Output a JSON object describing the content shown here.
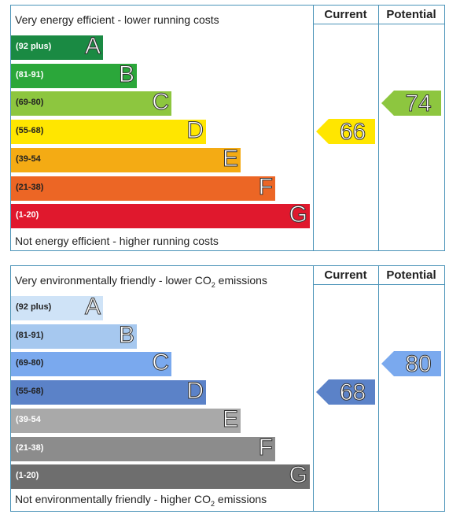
{
  "chart_data": [
    {
      "type": "bar",
      "top_text": "Very energy efficient - lower running costs",
      "bottom_text": "Not energy efficient - higher running costs",
      "columns": [
        "Current",
        "Potential"
      ],
      "bands": [
        {
          "range": "(92 plus)",
          "letter": "A",
          "color": "#1a8a43",
          "range_color": "#ffffff"
        },
        {
          "range": "(81-91)",
          "letter": "B",
          "color": "#2ba73a",
          "range_color": "#ffffff"
        },
        {
          "range": "(69-80)",
          "letter": "C",
          "color": "#8dc63f",
          "range_color": "#222222"
        },
        {
          "range": "(55-68)",
          "letter": "D",
          "color": "#ffe600",
          "range_color": "#222222"
        },
        {
          "range": "(39-54",
          "letter": "E",
          "color": "#f4ab14",
          "range_color": "#222222"
        },
        {
          "range": "(21-38)",
          "letter": "F",
          "color": "#ec6625",
          "range_color": "#222222"
        },
        {
          "range": "(1-20)",
          "letter": "G",
          "color": "#e0182d",
          "range_color": "#ffffff"
        }
      ],
      "current": {
        "value": "66",
        "band": "D",
        "color": "#ffe600"
      },
      "potential": {
        "value": "74",
        "band": "C",
        "color": "#8dc63f"
      }
    },
    {
      "type": "bar",
      "top_text": "Very environmentally friendly - lower CO2 emissions",
      "bottom_text": "Not environmentally friendly - higher CO2 emissions",
      "columns": [
        "Current",
        "Potential"
      ],
      "bands": [
        {
          "range": "(92 plus)",
          "letter": "A",
          "color": "#cfe3f7",
          "range_color": "#222222"
        },
        {
          "range": "(81-91)",
          "letter": "B",
          "color": "#a6c8ef",
          "range_color": "#222222"
        },
        {
          "range": "(69-80)",
          "letter": "C",
          "color": "#7aa9ee",
          "range_color": "#222222"
        },
        {
          "range": "(55-68)",
          "letter": "D",
          "color": "#5b82c8",
          "range_color": "#222222"
        },
        {
          "range": "(39-54",
          "letter": "E",
          "color": "#a9a9a9",
          "range_color": "#ffffff"
        },
        {
          "range": "(21-38)",
          "letter": "F",
          "color": "#8c8c8c",
          "range_color": "#ffffff"
        },
        {
          "range": "(1-20)",
          "letter": "G",
          "color": "#6e6e6e",
          "range_color": "#ffffff"
        }
      ],
      "current": {
        "value": "68",
        "band": "D",
        "color": "#5b82c8"
      },
      "potential": {
        "value": "80",
        "band": "C",
        "color": "#7aa9ee"
      }
    }
  ]
}
